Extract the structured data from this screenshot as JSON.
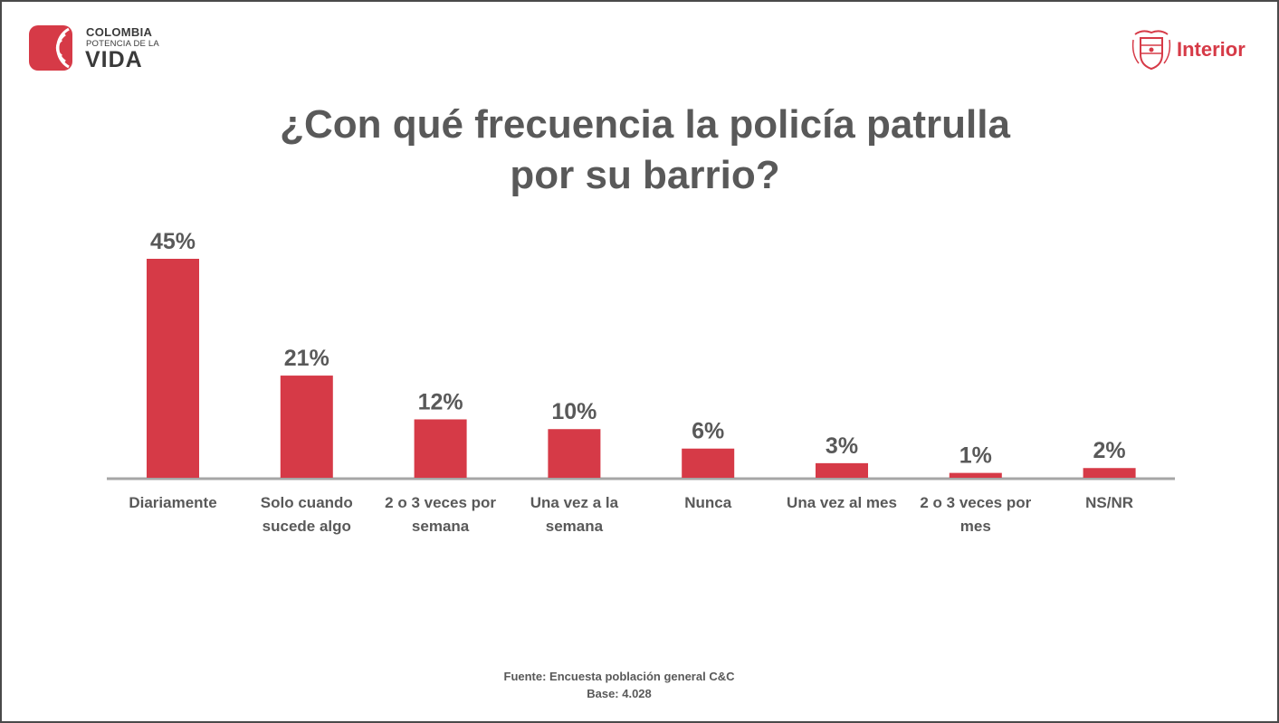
{
  "brand_left": {
    "line1": "COLOMBIA",
    "line2": "POTENCIA DE LA",
    "line3": "VIDA",
    "icon": "colombia-waves-logo",
    "color": "#d63a47"
  },
  "brand_right": {
    "label": "Interior",
    "icon": "colombia-coat-of-arms-icon",
    "color": "#d63a47"
  },
  "title": "¿Con qué frecuencia la policía patrulla por su barrio?",
  "chart_data": {
    "type": "bar",
    "title": "¿Con qué frecuencia la policía patrulla por su barrio?",
    "categories": [
      [
        "Diariamente"
      ],
      [
        "Solo cuando",
        "sucede algo"
      ],
      [
        "2 o 3 veces por",
        "semana"
      ],
      [
        "Una vez a la",
        "semana"
      ],
      [
        "Nunca"
      ],
      [
        "Una vez al mes"
      ],
      [
        "2 o 3 veces por",
        "mes"
      ],
      [
        "NS/NR"
      ]
    ],
    "values": [
      45,
      21,
      12,
      10,
      6,
      3,
      1,
      2
    ],
    "value_labels": [
      "45%",
      "21%",
      "12%",
      "10%",
      "6%",
      "3%",
      "1%",
      "2%"
    ],
    "unit": "%",
    "bar_color": "#d63a47",
    "axis_color": "#a6a6a6",
    "label_color": "#595959",
    "ylim": [
      0,
      45
    ],
    "grid": false,
    "legend": "none"
  },
  "footer": {
    "source": "Fuente: Encuesta población general C&C",
    "base": "Base: 4.028"
  }
}
